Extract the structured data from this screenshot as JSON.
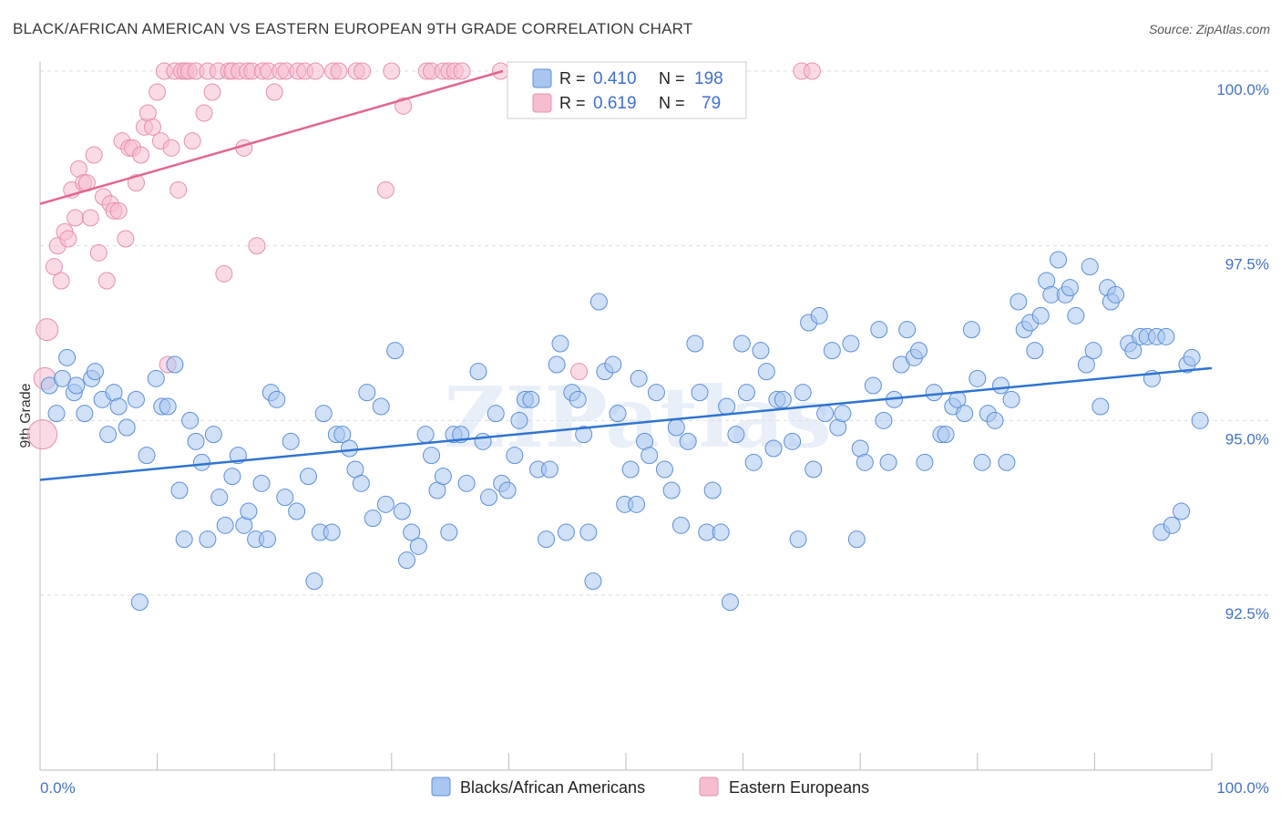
{
  "header": {
    "title": "BLACK/AFRICAN AMERICAN VS EASTERN EUROPEAN 9TH GRADE CORRELATION CHART",
    "source": "Source: ZipAtlas.com"
  },
  "watermark": "ZIPatlas",
  "colors": {
    "blue_fill": "#a9c6f0",
    "blue_stroke": "#5b8fd8",
    "blue_line": "#2f74d0",
    "pink_fill": "#f6bcd0",
    "pink_stroke": "#e690ae",
    "pink_line": "#e0668e",
    "tick_text": "#4472c4"
  },
  "legend": {
    "rows": [
      {
        "r_label": "R =",
        "r_value": "0.410",
        "n_label": "N =",
        "n_value": "198"
      },
      {
        "r_label": "R =",
        "r_value": "0.619",
        "n_label": "N =",
        "n_value": "79"
      }
    ]
  },
  "bottom_legend": {
    "items": [
      "Blacks/African Americans",
      "Eastern Europeans"
    ]
  },
  "chart_data": {
    "type": "scatter",
    "title": "BLACK/AFRICAN AMERICAN VS EASTERN EUROPEAN 9TH GRADE CORRELATION CHART",
    "xlabel": "",
    "ylabel": "9th Grade",
    "xlim": [
      0,
      100
    ],
    "ylim": [
      90.0,
      100.2
    ],
    "x_tick_labels": [
      "0.0%",
      "100.0%"
    ],
    "y_ticks": [
      92.5,
      95.0,
      97.5,
      100.0
    ],
    "y_tick_labels": [
      "92.5%",
      "95.0%",
      "97.5%",
      "100.0%"
    ],
    "grid": true,
    "legend_position": "top-center",
    "series": [
      {
        "name": "Blacks/African Americans",
        "r": 0.41,
        "n": 198,
        "trend": {
          "x": [
            0,
            100
          ],
          "y": [
            94.15,
            95.75
          ]
        },
        "points": [
          [
            0.8,
            95.5
          ],
          [
            1.4,
            95.1
          ],
          [
            1.9,
            95.6
          ],
          [
            2.3,
            95.9
          ],
          [
            2.9,
            95.4
          ],
          [
            3.1,
            95.5
          ],
          [
            3.8,
            95.1
          ],
          [
            4.4,
            95.6
          ],
          [
            4.7,
            95.7
          ],
          [
            5.3,
            95.3
          ],
          [
            5.8,
            94.8
          ],
          [
            6.3,
            95.4
          ],
          [
            6.7,
            95.2
          ],
          [
            7.4,
            94.9
          ],
          [
            8.2,
            95.3
          ],
          [
            8.5,
            92.4
          ],
          [
            9.1,
            94.5
          ],
          [
            9.9,
            95.6
          ],
          [
            10.4,
            95.2
          ],
          [
            10.9,
            95.2
          ],
          [
            11.5,
            95.8
          ],
          [
            11.9,
            94.0
          ],
          [
            12.3,
            93.3
          ],
          [
            12.8,
            95.0
          ],
          [
            13.3,
            94.7
          ],
          [
            13.8,
            94.4
          ],
          [
            14.3,
            93.3
          ],
          [
            14.8,
            94.8
          ],
          [
            15.3,
            93.9
          ],
          [
            15.8,
            93.5
          ],
          [
            16.4,
            94.2
          ],
          [
            16.9,
            94.5
          ],
          [
            17.4,
            93.5
          ],
          [
            17.8,
            93.7
          ],
          [
            18.4,
            93.3
          ],
          [
            18.9,
            94.1
          ],
          [
            19.4,
            93.3
          ],
          [
            19.7,
            95.4
          ],
          [
            20.2,
            95.3
          ],
          [
            20.9,
            93.9
          ],
          [
            21.4,
            94.7
          ],
          [
            21.9,
            93.7
          ],
          [
            22.9,
            94.2
          ],
          [
            23.4,
            92.7
          ],
          [
            23.9,
            93.4
          ],
          [
            24.2,
            95.1
          ],
          [
            24.9,
            93.4
          ],
          [
            25.3,
            94.8
          ],
          [
            25.8,
            94.8
          ],
          [
            26.4,
            94.6
          ],
          [
            26.9,
            94.3
          ],
          [
            27.4,
            94.1
          ],
          [
            27.9,
            95.4
          ],
          [
            28.4,
            93.6
          ],
          [
            29.1,
            95.2
          ],
          [
            29.5,
            93.8
          ],
          [
            30.3,
            96.0
          ],
          [
            30.9,
            93.7
          ],
          [
            31.3,
            93.0
          ],
          [
            31.7,
            93.4
          ],
          [
            32.3,
            93.2
          ],
          [
            32.9,
            94.8
          ],
          [
            33.4,
            94.5
          ],
          [
            33.9,
            94.0
          ],
          [
            34.4,
            94.2
          ],
          [
            34.9,
            93.4
          ],
          [
            35.3,
            94.8
          ],
          [
            35.9,
            94.8
          ],
          [
            36.4,
            94.1
          ],
          [
            37.4,
            95.7
          ],
          [
            37.8,
            94.7
          ],
          [
            38.3,
            93.9
          ],
          [
            38.9,
            95.1
          ],
          [
            39.4,
            94.1
          ],
          [
            39.9,
            94.0
          ],
          [
            40.5,
            94.5
          ],
          [
            40.9,
            95.0
          ],
          [
            41.4,
            95.3
          ],
          [
            41.9,
            95.3
          ],
          [
            42.5,
            94.3
          ],
          [
            43.2,
            93.3
          ],
          [
            43.5,
            94.3
          ],
          [
            44.1,
            95.8
          ],
          [
            44.4,
            96.1
          ],
          [
            44.9,
            93.4
          ],
          [
            45.4,
            95.4
          ],
          [
            45.9,
            95.3
          ],
          [
            46.4,
            94.8
          ],
          [
            46.8,
            93.4
          ],
          [
            47.2,
            92.7
          ],
          [
            47.7,
            96.7
          ],
          [
            48.2,
            95.7
          ],
          [
            48.9,
            95.8
          ],
          [
            49.3,
            95.1
          ],
          [
            49.9,
            93.8
          ],
          [
            50.4,
            94.3
          ],
          [
            50.9,
            93.8
          ],
          [
            51.1,
            95.6
          ],
          [
            51.6,
            94.7
          ],
          [
            52.0,
            94.5
          ],
          [
            52.6,
            95.4
          ],
          [
            53.3,
            94.3
          ],
          [
            53.9,
            94.0
          ],
          [
            54.3,
            94.9
          ],
          [
            54.7,
            93.5
          ],
          [
            55.3,
            94.7
          ],
          [
            55.9,
            96.1
          ],
          [
            56.3,
            95.4
          ],
          [
            56.9,
            93.4
          ],
          [
            57.4,
            94.0
          ],
          [
            58.1,
            93.4
          ],
          [
            58.6,
            95.2
          ],
          [
            58.9,
            92.4
          ],
          [
            59.4,
            94.8
          ],
          [
            59.9,
            96.1
          ],
          [
            60.3,
            95.4
          ],
          [
            60.9,
            94.4
          ],
          [
            61.5,
            96.0
          ],
          [
            62.0,
            95.7
          ],
          [
            62.6,
            94.6
          ],
          [
            62.9,
            95.3
          ],
          [
            63.4,
            95.3
          ],
          [
            64.2,
            94.7
          ],
          [
            64.7,
            93.3
          ],
          [
            65.1,
            95.4
          ],
          [
            65.6,
            96.4
          ],
          [
            66.0,
            94.3
          ],
          [
            66.5,
            96.5
          ],
          [
            67.0,
            95.1
          ],
          [
            67.6,
            96.0
          ],
          [
            68.1,
            94.9
          ],
          [
            68.5,
            95.1
          ],
          [
            69.2,
            96.1
          ],
          [
            69.7,
            93.3
          ],
          [
            70.0,
            94.6
          ],
          [
            70.4,
            94.4
          ],
          [
            71.1,
            95.5
          ],
          [
            71.6,
            96.3
          ],
          [
            72.0,
            95.0
          ],
          [
            72.4,
            94.4
          ],
          [
            72.9,
            95.3
          ],
          [
            73.5,
            95.8
          ],
          [
            74.0,
            96.3
          ],
          [
            74.6,
            95.9
          ],
          [
            75.0,
            96.0
          ],
          [
            75.5,
            94.4
          ],
          [
            76.3,
            95.4
          ],
          [
            76.9,
            94.8
          ],
          [
            77.3,
            94.8
          ],
          [
            77.9,
            95.2
          ],
          [
            78.3,
            95.3
          ],
          [
            78.9,
            95.1
          ],
          [
            79.5,
            96.3
          ],
          [
            80.0,
            95.6
          ],
          [
            80.4,
            94.4
          ],
          [
            80.9,
            95.1
          ],
          [
            81.5,
            95.0
          ],
          [
            82.0,
            95.5
          ],
          [
            82.5,
            94.4
          ],
          [
            82.9,
            95.3
          ],
          [
            83.5,
            96.7
          ],
          [
            84.0,
            96.3
          ],
          [
            84.5,
            96.4
          ],
          [
            84.9,
            96.0
          ],
          [
            85.4,
            96.5
          ],
          [
            85.9,
            97.0
          ],
          [
            86.3,
            96.8
          ],
          [
            86.9,
            97.3
          ],
          [
            87.5,
            96.8
          ],
          [
            87.9,
            96.9
          ],
          [
            88.4,
            96.5
          ],
          [
            89.3,
            95.8
          ],
          [
            89.6,
            97.2
          ],
          [
            89.9,
            96.0
          ],
          [
            90.5,
            95.2
          ],
          [
            91.1,
            96.9
          ],
          [
            91.4,
            96.7
          ],
          [
            91.8,
            96.8
          ],
          [
            92.9,
            96.1
          ],
          [
            93.3,
            96.0
          ],
          [
            93.9,
            96.2
          ],
          [
            94.5,
            96.2
          ],
          [
            94.9,
            95.6
          ],
          [
            95.3,
            96.2
          ],
          [
            95.7,
            93.4
          ],
          [
            96.1,
            96.2
          ],
          [
            96.6,
            93.5
          ],
          [
            97.4,
            93.7
          ],
          [
            97.9,
            95.8
          ],
          [
            98.3,
            95.9
          ],
          [
            99.0,
            95.0
          ]
        ]
      },
      {
        "name": "Eastern Europeans",
        "r": 0.619,
        "n": 79,
        "trend": {
          "x": [
            0,
            39.5
          ],
          "y": [
            98.1,
            100.0
          ]
        },
        "points": [
          [
            0.2,
            94.8
          ],
          [
            0.4,
            95.6
          ],
          [
            0.6,
            96.3
          ],
          [
            1.2,
            97.2
          ],
          [
            1.5,
            97.5
          ],
          [
            1.8,
            97.0
          ],
          [
            2.1,
            97.7
          ],
          [
            2.4,
            97.6
          ],
          [
            2.7,
            98.3
          ],
          [
            3.0,
            97.9
          ],
          [
            3.3,
            98.6
          ],
          [
            3.7,
            98.4
          ],
          [
            4.0,
            98.4
          ],
          [
            4.3,
            97.9
          ],
          [
            4.6,
            98.8
          ],
          [
            5.0,
            97.4
          ],
          [
            5.4,
            98.2
          ],
          [
            5.7,
            97.0
          ],
          [
            6.0,
            98.1
          ],
          [
            6.3,
            98.0
          ],
          [
            6.7,
            98.0
          ],
          [
            7.0,
            99.0
          ],
          [
            7.3,
            97.6
          ],
          [
            7.6,
            98.9
          ],
          [
            7.9,
            98.9
          ],
          [
            8.2,
            98.4
          ],
          [
            8.6,
            98.8
          ],
          [
            8.9,
            99.2
          ],
          [
            9.2,
            99.4
          ],
          [
            9.6,
            99.2
          ],
          [
            10.0,
            99.7
          ],
          [
            10.3,
            99.0
          ],
          [
            10.6,
            100.0
          ],
          [
            10.9,
            95.8
          ],
          [
            11.2,
            98.9
          ],
          [
            11.5,
            100.0
          ],
          [
            11.8,
            98.3
          ],
          [
            12.1,
            100.0
          ],
          [
            12.4,
            100.0
          ],
          [
            12.7,
            100.0
          ],
          [
            13.0,
            99.0
          ],
          [
            13.3,
            100.0
          ],
          [
            14.0,
            99.4
          ],
          [
            14.3,
            100.0
          ],
          [
            14.7,
            99.7
          ],
          [
            15.2,
            100.0
          ],
          [
            15.7,
            97.1
          ],
          [
            16.1,
            100.0
          ],
          [
            16.4,
            100.0
          ],
          [
            17.0,
            100.0
          ],
          [
            17.4,
            98.9
          ],
          [
            17.7,
            100.0
          ],
          [
            18.1,
            100.0
          ],
          [
            18.5,
            97.5
          ],
          [
            19.0,
            100.0
          ],
          [
            19.5,
            100.0
          ],
          [
            20.0,
            99.7
          ],
          [
            20.5,
            100.0
          ],
          [
            21.0,
            100.0
          ],
          [
            22.0,
            100.0
          ],
          [
            22.6,
            100.0
          ],
          [
            23.5,
            100.0
          ],
          [
            25.0,
            100.0
          ],
          [
            25.5,
            100.0
          ],
          [
            27.0,
            100.0
          ],
          [
            27.5,
            100.0
          ],
          [
            29.5,
            98.3
          ],
          [
            30.0,
            100.0
          ],
          [
            31.0,
            99.5
          ],
          [
            33.0,
            100.0
          ],
          [
            33.4,
            100.0
          ],
          [
            34.4,
            100.0
          ],
          [
            34.9,
            100.0
          ],
          [
            35.4,
            100.0
          ],
          [
            36.0,
            100.0
          ],
          [
            39.3,
            100.0
          ],
          [
            65.0,
            100.0
          ],
          [
            65.9,
            100.0
          ],
          [
            46.0,
            95.7
          ]
        ]
      }
    ]
  }
}
